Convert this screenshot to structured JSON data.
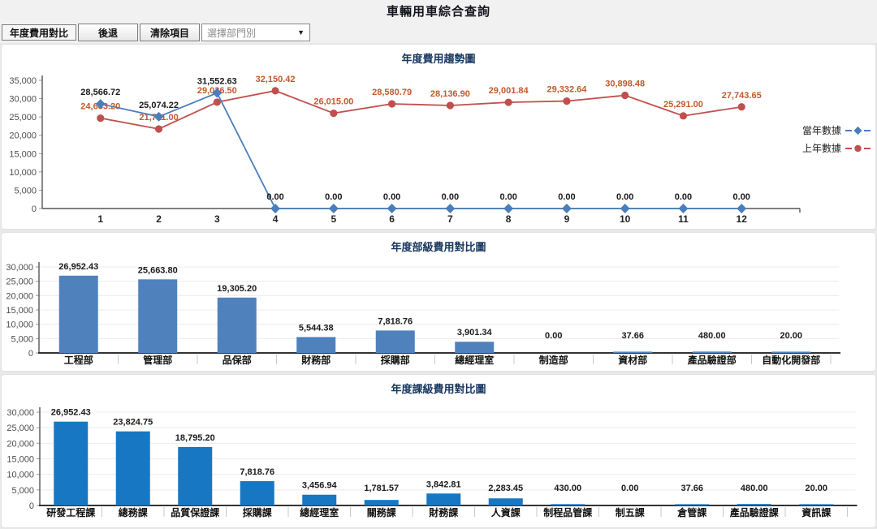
{
  "header": {
    "title": "車輛用車綜合查詢"
  },
  "toolbar": {
    "mode_label": "年度費用對比",
    "back_button": "後退",
    "clear_button": "清除項目",
    "department_select": {
      "value": "選擇部門別",
      "arrow_icon": "chevron-down"
    }
  },
  "colors": {
    "chart_title": "#17365d",
    "current_year_line": "#4a7ebb",
    "previous_year_line": "#c0504d",
    "current_year_label": "#1a1a1a",
    "previous_year_label": "#c05a2e",
    "dept_bar": "#4f81bd",
    "section_bar": "#1777c2"
  },
  "chart_data": [
    {
      "type": "line",
      "title": "年度費用趨勢圖",
      "x": [
        "1",
        "2",
        "3",
        "4",
        "5",
        "6",
        "7",
        "8",
        "9",
        "10",
        "11",
        "12"
      ],
      "ylim": [
        0,
        35000
      ],
      "ytick_step": 5000,
      "grid": false,
      "legend_position": "right",
      "series": [
        {
          "name": "當年數據",
          "marker": "diamond",
          "color": "#4a7ebb",
          "label_color": "#1a1a1a",
          "values": [
            28566.72,
            25074.22,
            31552.63,
            0,
            0,
            0,
            0,
            0,
            0,
            0,
            0,
            0
          ]
        },
        {
          "name": "上年數據",
          "marker": "circle",
          "color": "#c0504d",
          "label_color": "#c05a2e",
          "values": [
            24683.2,
            21711.0,
            29036.5,
            32150.42,
            26015.0,
            28580.79,
            28136.9,
            29001.84,
            29332.64,
            30898.48,
            25291.0,
            27743.65
          ]
        }
      ]
    },
    {
      "type": "bar",
      "title": "年度部級費用對比圖",
      "categories": [
        "工程部",
        "管理部",
        "品保部",
        "財務部",
        "採購部",
        "總經理室",
        "制造部",
        "資材部",
        "產品驗證部",
        "自動化開發部"
      ],
      "values": [
        26952.43,
        25663.8,
        19305.2,
        5544.38,
        7818.76,
        3901.34,
        0.0,
        37.66,
        480.0,
        20.0
      ],
      "bar_color": "#4f81bd",
      "ylim": [
        0,
        30000
      ],
      "ytick_step": 5000,
      "grid": true
    },
    {
      "type": "bar",
      "title": "年度課級費用對比圖",
      "categories": [
        "研發工程課",
        "總務課",
        "品質保證課",
        "採購課",
        "總經理室",
        "關務課",
        "財務課",
        "人資課",
        "制程品管課",
        "制五課",
        "倉管課",
        "產品驗證課",
        "資訊課"
      ],
      "values": [
        26952.43,
        23824.75,
        18795.2,
        7818.76,
        3456.94,
        1781.57,
        3842.81,
        2283.45,
        430.0,
        0.0,
        37.66,
        480.0,
        20.0
      ],
      "bar_color": "#1777c2",
      "ylim": [
        0,
        30000
      ],
      "ytick_step": 5000,
      "grid": true
    }
  ]
}
